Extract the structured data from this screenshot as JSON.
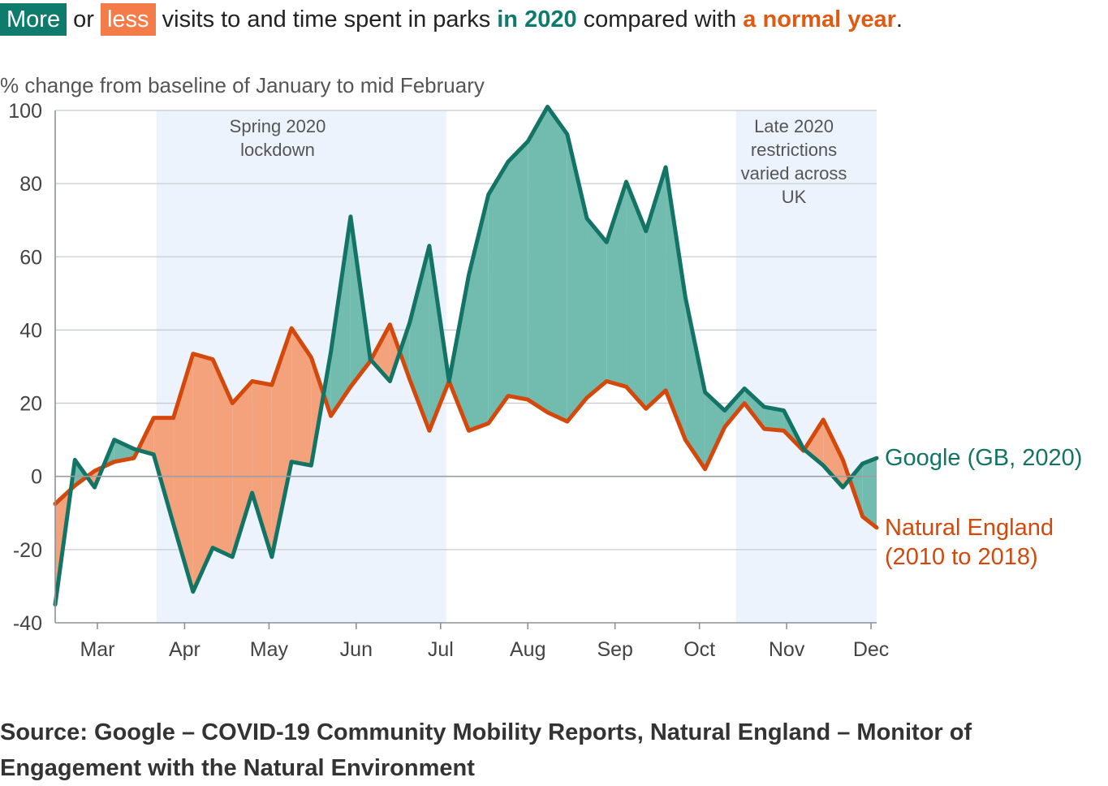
{
  "title": {
    "more": "More",
    "or": " or ",
    "less": "less",
    "middle": " visits to and time spent in parks ",
    "in2020": "in 2020",
    "compared": " compared with ",
    "normal": "a normal year",
    "end": "."
  },
  "source": "Source: Google – COVID-19 Community Mobility Reports, Natural England – Monitor of Engagement with the Natural Environment",
  "colors": {
    "google": "#137466",
    "natural": "#d4480b",
    "more_fill": "#71bbaf",
    "less_fill": "#f3a27c",
    "shade": "#edf3fc",
    "grid": "#c8ccd0",
    "axis": "#8d9196"
  },
  "chart_data": {
    "type": "line",
    "ylabel": "% change from baseline of January to mid February",
    "ylim": [
      -40,
      100
    ],
    "yticks": [
      -40,
      -20,
      0,
      20,
      40,
      60,
      80,
      100
    ],
    "grid": "horizontal",
    "x_unit": "days since 1 Jan 2020",
    "xlim": [
      52,
      344
    ],
    "month_ticks": [
      {
        "label": "Mar",
        "x": 67
      },
      {
        "label": "Apr",
        "x": 98
      },
      {
        "label": "May",
        "x": 128
      },
      {
        "label": "Jun",
        "x": 159
      },
      {
        "label": "Jul",
        "x": 189
      },
      {
        "label": "Aug",
        "x": 220
      },
      {
        "label": "Sep",
        "x": 251
      },
      {
        "label": "Oct",
        "x": 281
      },
      {
        "label": "Nov",
        "x": 312
      },
      {
        "label": "Dec",
        "x": 342
      }
    ],
    "shaded_periods": [
      {
        "label": "Spring 2020 lockdown",
        "x0": 88,
        "x1": 191
      },
      {
        "label": "Late 2020 restrictions varied across UK",
        "x0": 294,
        "x1": 344
      }
    ],
    "series": [
      {
        "name": "Google (GB, 2020)",
        "x": [
          52,
          59,
          66,
          73,
          80,
          87,
          94,
          101,
          108,
          115,
          122,
          129,
          136,
          143,
          150,
          157,
          164,
          171,
          178,
          185,
          192,
          199,
          206,
          213,
          220,
          227,
          234,
          241,
          248,
          255,
          262,
          269,
          276,
          283,
          290,
          297,
          304,
          311,
          318,
          325,
          332,
          339,
          344
        ],
        "values": [
          -35,
          4.5,
          -3,
          10,
          7.5,
          6,
          -13,
          -31.5,
          -19.5,
          -22,
          -4.5,
          -22,
          4,
          3,
          34,
          71,
          32,
          26,
          42,
          63,
          26,
          55,
          77,
          86,
          91.5,
          101,
          93.5,
          70.5,
          64,
          80.5,
          67,
          84.5,
          49,
          23,
          18,
          24,
          19,
          18,
          7.5,
          3,
          -3,
          3.5,
          5
        ]
      },
      {
        "name": "Natural England\n(2010 to 2018)",
        "x": [
          52,
          59,
          66,
          73,
          80,
          87,
          94,
          101,
          108,
          115,
          122,
          129,
          136,
          143,
          150,
          157,
          164,
          171,
          178,
          185,
          192,
          199,
          206,
          213,
          220,
          227,
          234,
          241,
          248,
          255,
          262,
          269,
          276,
          283,
          290,
          297,
          304,
          311,
          318,
          325,
          332,
          339,
          344
        ],
        "values": [
          -7.5,
          -2.5,
          1.5,
          4,
          5,
          16,
          16,
          33.5,
          32,
          20,
          26,
          25,
          40.5,
          32.5,
          16.5,
          24.5,
          31.5,
          41.5,
          26.5,
          12.5,
          26,
          12.5,
          14.5,
          22,
          21,
          17.5,
          15,
          21.5,
          26,
          24.5,
          18.5,
          23.5,
          10,
          2,
          13.5,
          20,
          13,
          12.5,
          7,
          15.5,
          4.5,
          -11,
          -14
        ]
      }
    ]
  }
}
